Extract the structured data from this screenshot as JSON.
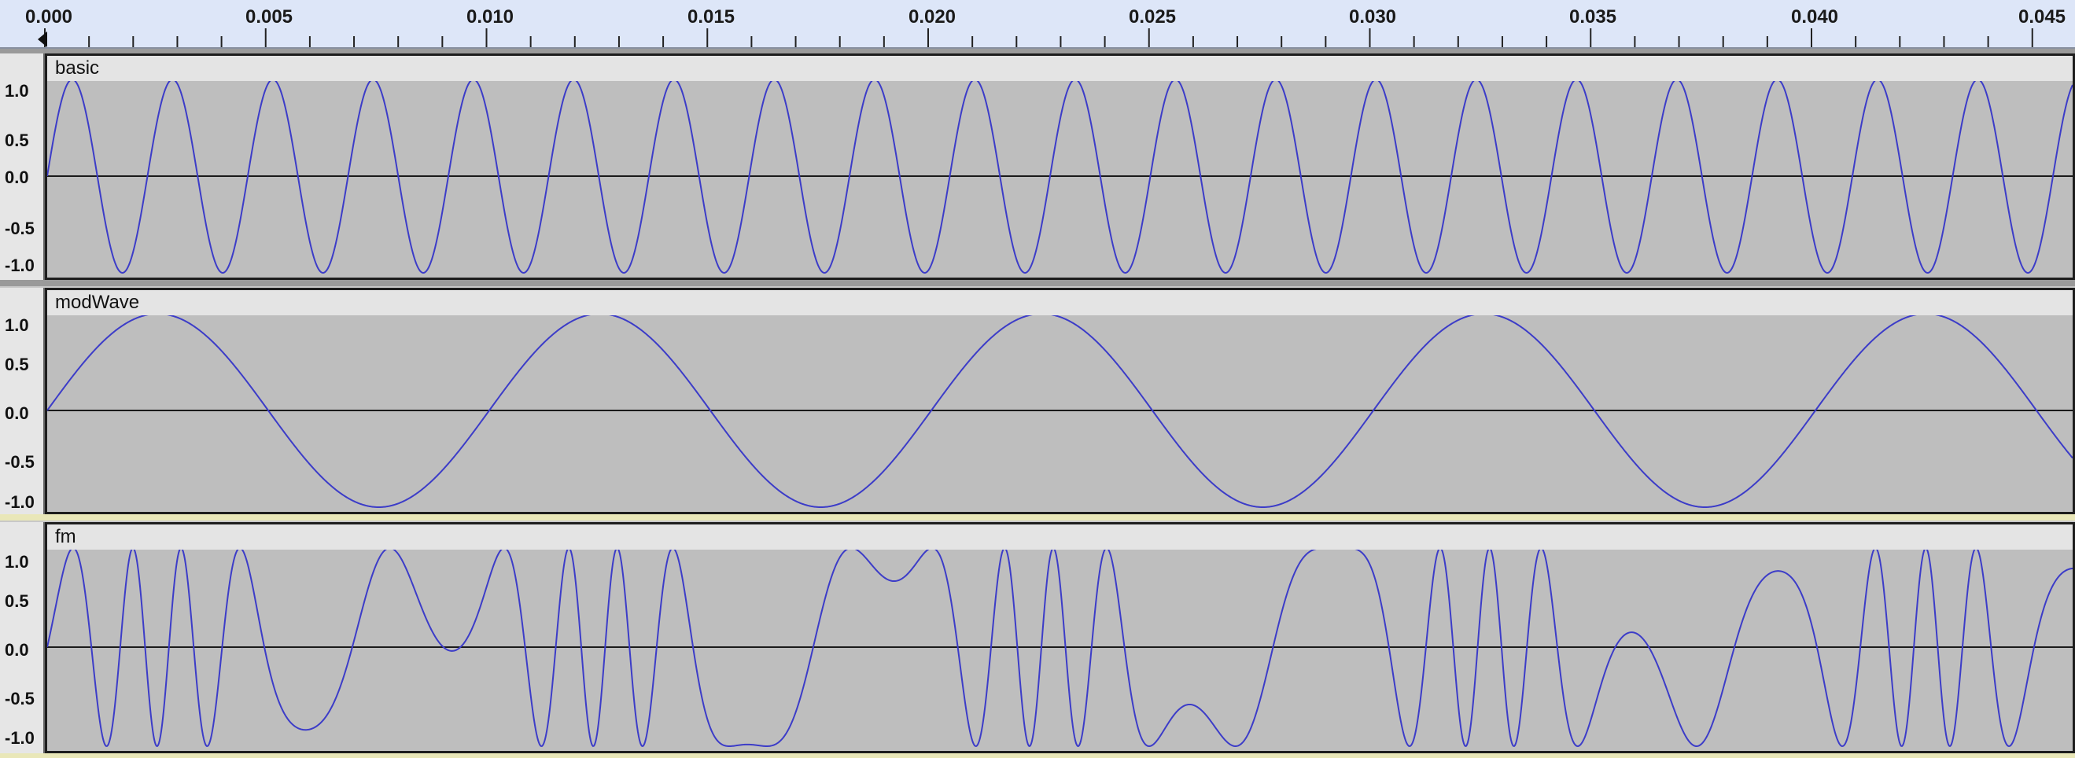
{
  "ruler": {
    "ticks": [
      "0.000",
      "0.005",
      "0.010",
      "0.015",
      "0.020",
      "0.025",
      "0.030",
      "0.035",
      "0.040",
      "0.045"
    ]
  },
  "tracks": [
    {
      "name": "basic",
      "y_labels": [
        "1.0",
        "0.5",
        "0.0",
        "-0.5",
        "-1.0"
      ]
    },
    {
      "name": "modWave",
      "y_labels": [
        "1.0",
        "0.5",
        "0.0",
        "-0.5",
        "-1.0"
      ]
    },
    {
      "name": "fm",
      "y_labels": [
        "1.0",
        "0.5",
        "0.0",
        "-0.5",
        "-1.0"
      ]
    }
  ],
  "colors": {
    "waveform": "#3c3cc8",
    "zero_line": "#1a1a1a",
    "clip_region": "#bebebe",
    "header": "#e4e4e4"
  }
}
